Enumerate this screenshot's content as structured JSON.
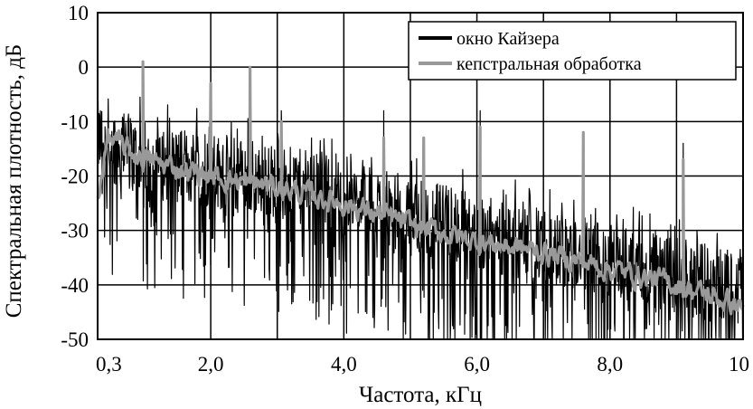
{
  "chart_data": {
    "type": "line",
    "xlabel": "Частота, кГц",
    "ylabel": "Спектральная плотность, дБ",
    "xlim": [
      0.3,
      10
    ],
    "ylim": [
      -50,
      10
    ],
    "x_ticks": [
      {
        "value": 0.3,
        "label": "0,3"
      },
      {
        "value": 2.0,
        "label": "2,0"
      },
      {
        "value": 4.0,
        "label": "4,0"
      },
      {
        "value": 6.0,
        "label": "6,0"
      },
      {
        "value": 8.0,
        "label": "8,0"
      },
      {
        "value": 10.0,
        "label": "10"
      }
    ],
    "x_gridlines": [
      0.3,
      2,
      3,
      4,
      5,
      6,
      7,
      8,
      9,
      10
    ],
    "y_ticks": [
      10,
      0,
      -10,
      -20,
      -30,
      -40,
      -50
    ],
    "grid": true,
    "legend_position": "top-right",
    "series": [
      {
        "name": "окно Кайзера",
        "color": "#000000",
        "style": "noisy",
        "trend": {
          "x": [
            0.3,
            1.0,
            3.0,
            5.0,
            7.0,
            10.0
          ],
          "y": [
            -13,
            -17,
            -21,
            -27,
            -33,
            -41
          ]
        },
        "spread": 7,
        "spikes": [
          {
            "x": 0.98,
            "y": 1
          },
          {
            "x": 2.0,
            "y": -4
          },
          {
            "x": 2.59,
            "y": 0
          },
          {
            "x": 3.06,
            "y": -8
          },
          {
            "x": 4.6,
            "y": -8
          },
          {
            "x": 5.2,
            "y": -14
          },
          {
            "x": 6.05,
            "y": -8
          },
          {
            "x": 7.6,
            "y": -15
          },
          {
            "x": 9.1,
            "y": -14
          }
        ]
      },
      {
        "name": "кепстральная обработка",
        "color": "#999999",
        "style": "smooth",
        "trend": {
          "x": [
            0.3,
            0.45,
            1.0,
            2.0,
            3.0,
            4.0,
            5.0,
            6.0,
            7.0,
            8.0,
            9.0,
            10.0
          ],
          "y": [
            -24,
            -13,
            -17,
            -20,
            -22,
            -25,
            -29,
            -32,
            -34,
            -37,
            -40,
            -44
          ]
        },
        "spikes": [
          {
            "x": 0.98,
            "y": 1
          },
          {
            "x": 2.0,
            "y": -3
          },
          {
            "x": 2.59,
            "y": 0
          },
          {
            "x": 3.06,
            "y": -10
          },
          {
            "x": 4.6,
            "y": -13
          },
          {
            "x": 5.2,
            "y": -13
          },
          {
            "x": 6.05,
            "y": -11
          },
          {
            "x": 7.6,
            "y": -12
          },
          {
            "x": 9.1,
            "y": -17
          }
        ]
      }
    ]
  }
}
